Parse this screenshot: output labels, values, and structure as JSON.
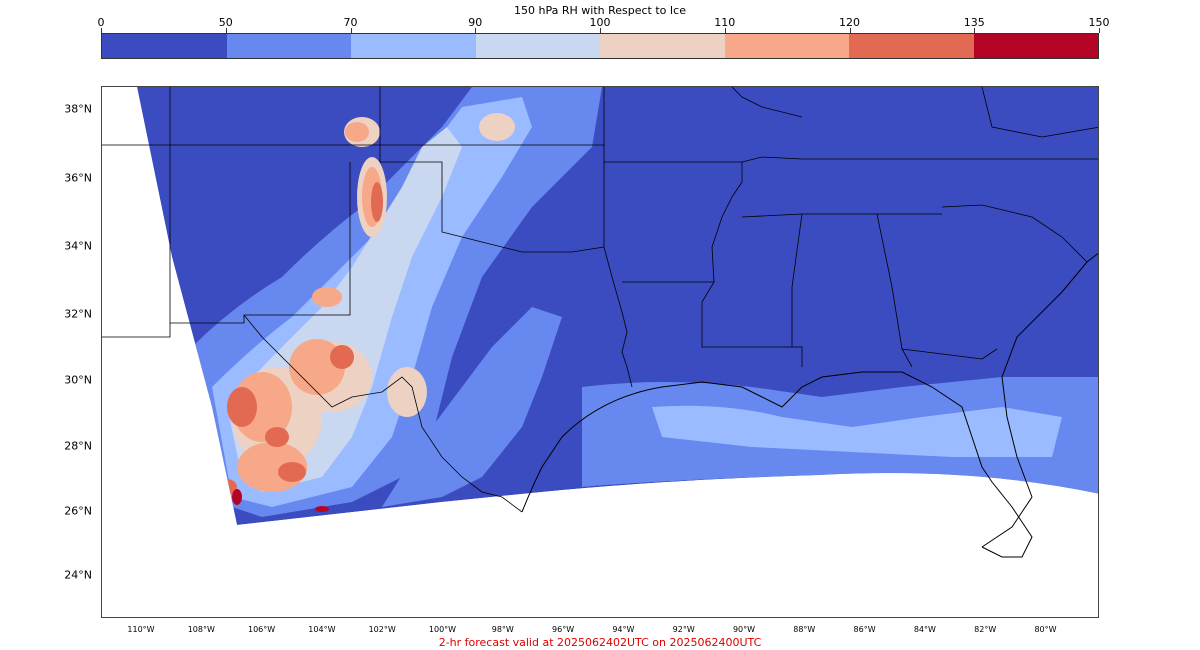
{
  "colorbar": {
    "title": "150 hPa RH with Respect to Ice",
    "ticks": [
      "0",
      "50",
      "70",
      "90",
      "100",
      "110",
      "120",
      "135",
      "150"
    ],
    "colors": [
      "#3b4cc0",
      "#6788ee",
      "#9abbff",
      "#c9d7f0",
      "#edd1c2",
      "#f7a889",
      "#e26952",
      "#b40426"
    ]
  },
  "map": {
    "lat_labels": [
      "38°N",
      "36°N",
      "34°N",
      "32°N",
      "30°N",
      "28°N",
      "26°N",
      "24°N"
    ],
    "lon_labels": [
      "110°W",
      "108°W",
      "106°W",
      "104°W",
      "102°W",
      "100°W",
      "98°W",
      "96°W",
      "94°W",
      "92°W",
      "90°W",
      "88°W",
      "86°W",
      "84°W",
      "82°W",
      "80°W"
    ],
    "background_color": "#3b4cc0",
    "border_color": "#000000"
  },
  "footer": {
    "text": "2-hr forecast valid at 2025062402UTC on 2025062400UTC",
    "color": "#e00000"
  }
}
